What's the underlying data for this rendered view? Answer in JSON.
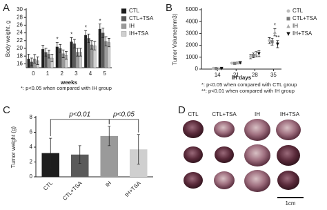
{
  "chart_data": [
    {
      "type": "bar",
      "panel_label": "A",
      "y_label": "Body weight, g",
      "x_label": "weeks",
      "categories": [
        "0",
        "1",
        "2",
        "3",
        "4",
        "5"
      ],
      "series": [
        {
          "name": "CTL",
          "color": "#1e1e1e",
          "values": [
            17.3,
            19.8,
            20.4,
            21.7,
            23.4,
            25.0
          ],
          "errors": [
            1.2,
            1.0,
            1.1,
            1.1,
            1.2,
            1.3
          ]
        },
        {
          "name": "CTL+TSA",
          "color": "#5a5a5a",
          "values": [
            16.5,
            19.0,
            20.0,
            21.2,
            22.6,
            24.0
          ],
          "errors": [
            1.0,
            1.0,
            1.0,
            1.1,
            1.1,
            1.2
          ]
        },
        {
          "name": "IH",
          "color": "#9a9a9a",
          "values": [
            17.3,
            18.5,
            18.6,
            19.0,
            20.9,
            21.8
          ],
          "errors": [
            1.1,
            1.0,
            1.0,
            1.0,
            1.1,
            1.2
          ]
        },
        {
          "name": "IH+TSA",
          "color": "#cfcfcf",
          "values": [
            16.8,
            17.5,
            18.2,
            19.0,
            20.7,
            21.5
          ],
          "errors": [
            1.0,
            1.0,
            1.0,
            1.0,
            1.1,
            1.1
          ]
        }
      ],
      "ylim": [
        15,
        30
      ],
      "yticks": [
        16,
        18,
        20,
        22,
        24,
        26,
        28,
        30
      ],
      "annotations": [
        "*",
        "*",
        "*",
        "*"
      ],
      "notes": [
        "*: p<0.05 when compared with IH group"
      ]
    },
    {
      "type": "scatter",
      "panel_label": "B",
      "y_label": "Tumor Volume(mm3)",
      "x_label": "IH days",
      "x": [
        14,
        21,
        28,
        35
      ],
      "series": [
        {
          "name": "CTL",
          "color": "#bdbdbd",
          "marker": "circle",
          "values": [
            60,
            500,
            1050,
            2400
          ],
          "errors": [
            30,
            60,
            180,
            250
          ]
        },
        {
          "name": "CTL+TSA",
          "color": "#7a7a7a",
          "marker": "square",
          "values": [
            50,
            480,
            1150,
            2300
          ],
          "errors": [
            30,
            60,
            200,
            280
          ]
        },
        {
          "name": "IH",
          "color": "#a8a8a8",
          "marker": "triangle",
          "values": [
            50,
            520,
            1250,
            3100
          ],
          "errors": [
            30,
            70,
            220,
            300
          ]
        },
        {
          "name": "IH+TSA",
          "color": "#111111",
          "marker": "triangle-down",
          "values": [
            55,
            530,
            1300,
            2100
          ],
          "errors": [
            30,
            70,
            250,
            300
          ]
        }
      ],
      "xlim": [
        8,
        38
      ],
      "xticks": [
        14,
        21,
        28,
        35
      ],
      "ylim": [
        0,
        5000
      ],
      "yticks": [
        0,
        1000,
        2000,
        3000,
        4000,
        5000
      ],
      "annotations": [
        "*",
        "**"
      ],
      "notes": [
        "*: p<0.05 when compared with CTL group",
        "**: p<0.01 when compared with IH group"
      ]
    },
    {
      "type": "bar",
      "panel_label": "C",
      "y_label": "Tumor weight (g)",
      "categories": [
        "CTL",
        "CTL+TSA",
        "IH",
        "IH+TSA"
      ],
      "values": [
        3.2,
        3.0,
        5.5,
        3.7
      ],
      "errors": [
        2.0,
        1.2,
        1.3,
        2.0
      ],
      "colors": [
        "#1e1e1e",
        "#5a5a5a",
        "#9a9a9a",
        "#cfcfcf"
      ],
      "ylim": [
        0,
        8
      ],
      "yticks": [
        0,
        2,
        4,
        6,
        8
      ],
      "comparisons": [
        {
          "label": "p<0.01"
        },
        {
          "label": "p<0.05"
        }
      ]
    }
  ],
  "photo": {
    "panel_label": "D",
    "columns": [
      "CTL",
      "CTL+TSA",
      "IH",
      "IH+TSA"
    ],
    "scale_bar": "1cm"
  }
}
